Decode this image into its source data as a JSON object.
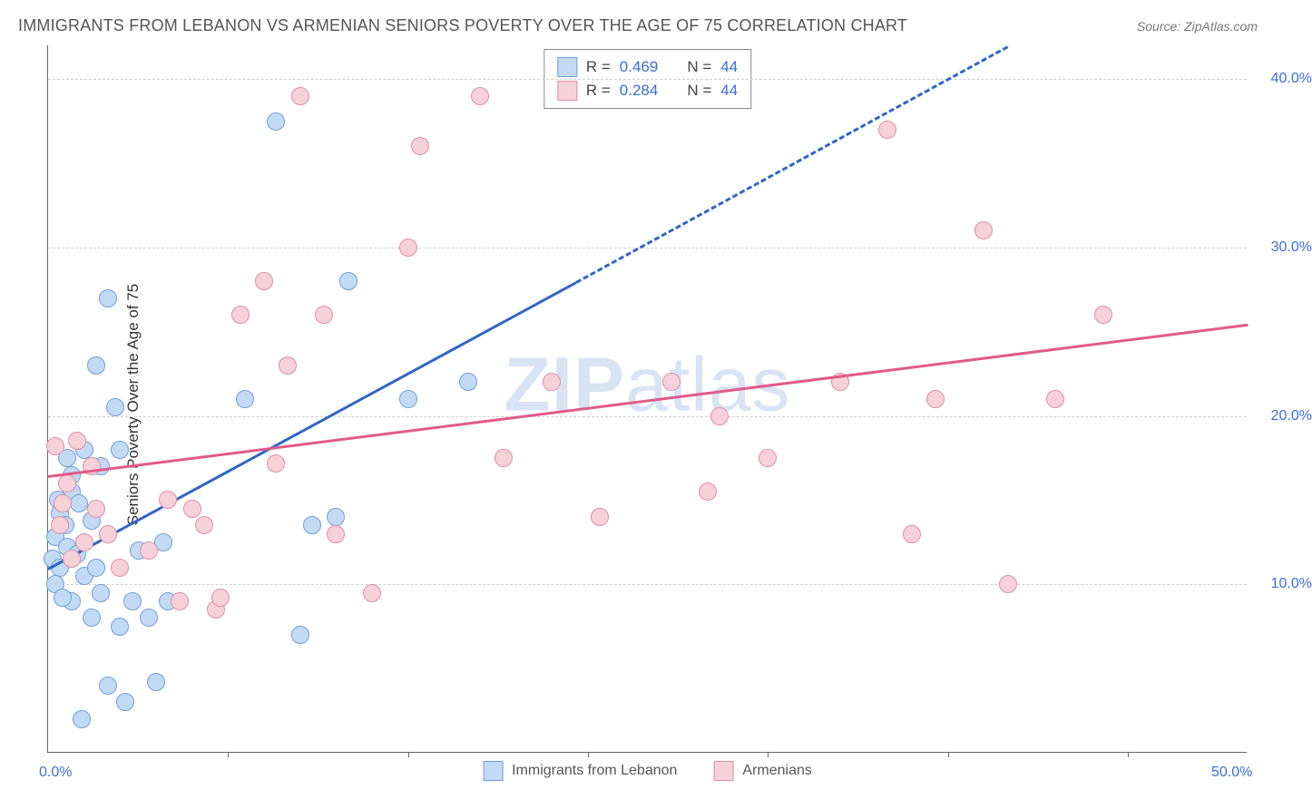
{
  "title": "IMMIGRANTS FROM LEBANON VS ARMENIAN SENIORS POVERTY OVER THE AGE OF 75 CORRELATION CHART",
  "source_label": "Source: ",
  "source_value": "ZipAtlas.com",
  "ylabel": "Seniors Poverty Over the Age of 75",
  "watermark_light": "ZIP",
  "watermark_bold": "atlas",
  "chart": {
    "type": "scatter",
    "xlim": [
      0,
      50
    ],
    "ylim": [
      0,
      42
    ],
    "x_ticks": [
      0,
      50
    ],
    "x_tick_labels": [
      "0.0%",
      "50.0%"
    ],
    "x_minor_ticks": [
      7.5,
      15,
      22.5,
      30,
      37.5,
      45
    ],
    "y_grid": [
      10,
      20,
      30,
      40
    ],
    "y_tick_labels": [
      "10.0%",
      "20.0%",
      "30.0%",
      "40.0%"
    ],
    "background_color": "#ffffff",
    "grid_color": "#d0d0d0",
    "axis_color": "#666666",
    "tick_label_color": "#3b6fd6",
    "point_radius": 10,
    "series": [
      {
        "name": "Immigrants from Lebanon",
        "fill": "#c3daf5",
        "stroke": "#6f9fd8",
        "trend": {
          "x1": 0,
          "y1": 11,
          "x2": 22,
          "y2": 28,
          "color": "#2f66c7",
          "dash": "solid"
        },
        "trend_ext": {
          "x1": 22,
          "y1": 28,
          "x2": 40,
          "y2": 42,
          "color": "#2f66c7",
          "dash": "dashed"
        },
        "R_label": "R = ",
        "R": "0.469",
        "N_label": "N = ",
        "N": "44",
        "points": [
          [
            0.2,
            11.5
          ],
          [
            0.3,
            12.8
          ],
          [
            0.5,
            14.2
          ],
          [
            0.5,
            11.0
          ],
          [
            0.7,
            13.5
          ],
          [
            0.8,
            12.2
          ],
          [
            1.0,
            15.5
          ],
          [
            1.0,
            9.0
          ],
          [
            1.2,
            11.8
          ],
          [
            1.3,
            14.8
          ],
          [
            1.5,
            10.5
          ],
          [
            1.8,
            8.0
          ],
          [
            2.0,
            23.0
          ],
          [
            2.2,
            9.5
          ],
          [
            2.5,
            27.0
          ],
          [
            2.5,
            4.0
          ],
          [
            2.8,
            20.5
          ],
          [
            3.0,
            7.5
          ],
          [
            3.2,
            3.0
          ],
          [
            3.5,
            9.0
          ],
          [
            3.8,
            12.0
          ],
          [
            4.2,
            8.0
          ],
          [
            4.5,
            4.2
          ],
          [
            4.8,
            12.5
          ],
          [
            5.0,
            9.0
          ],
          [
            8.2,
            21.0
          ],
          [
            9.5,
            37.5
          ],
          [
            10.5,
            7.0
          ],
          [
            11.0,
            13.5
          ],
          [
            12.0,
            14.0
          ],
          [
            12.5,
            28.0
          ],
          [
            15.0,
            21.0
          ],
          [
            17.5,
            22.0
          ],
          [
            0.8,
            17.5
          ],
          [
            1.5,
            18.0
          ],
          [
            0.3,
            10.0
          ],
          [
            1.0,
            16.5
          ],
          [
            2.0,
            11.0
          ],
          [
            3.0,
            18.0
          ],
          [
            0.6,
            9.2
          ],
          [
            1.8,
            13.8
          ],
          [
            0.4,
            15.0
          ],
          [
            2.2,
            17.0
          ],
          [
            1.4,
            2.0
          ]
        ]
      },
      {
        "name": "Armenians",
        "fill": "#f7d1da",
        "stroke": "#df8fa4",
        "trend": {
          "x1": 0,
          "y1": 16.5,
          "x2": 50,
          "y2": 25.5,
          "color": "#e15a87",
          "dash": "solid"
        },
        "trend_ext": null,
        "R_label": "R = ",
        "R": "0.284",
        "N_label": "N = ",
        "N": "44",
        "points": [
          [
            0.3,
            18.2
          ],
          [
            0.5,
            13.5
          ],
          [
            0.8,
            16.0
          ],
          [
            1.0,
            11.5
          ],
          [
            1.2,
            18.5
          ],
          [
            1.5,
            12.5
          ],
          [
            1.8,
            17.0
          ],
          [
            2.0,
            14.5
          ],
          [
            2.5,
            13.0
          ],
          [
            3.0,
            11.0
          ],
          [
            4.2,
            12.0
          ],
          [
            5.0,
            15.0
          ],
          [
            5.5,
            9.0
          ],
          [
            6.0,
            14.5
          ],
          [
            6.5,
            13.5
          ],
          [
            7.0,
            8.5
          ],
          [
            7.2,
            9.2
          ],
          [
            8.0,
            26.0
          ],
          [
            9.0,
            28.0
          ],
          [
            9.5,
            17.2
          ],
          [
            10.0,
            23.0
          ],
          [
            10.5,
            39.0
          ],
          [
            11.5,
            26.0
          ],
          [
            12.0,
            13.0
          ],
          [
            13.5,
            9.5
          ],
          [
            15.0,
            30.0
          ],
          [
            15.5,
            36.0
          ],
          [
            18.0,
            39.0
          ],
          [
            19.0,
            17.5
          ],
          [
            21.0,
            22.0
          ],
          [
            23.0,
            14.0
          ],
          [
            26.0,
            22.0
          ],
          [
            27.5,
            15.5
          ],
          [
            28.0,
            20.0
          ],
          [
            30.0,
            17.5
          ],
          [
            33.0,
            22.0
          ],
          [
            35.0,
            37.0
          ],
          [
            36.0,
            13.0
          ],
          [
            37.0,
            21.0
          ],
          [
            39.0,
            31.0
          ],
          [
            40.0,
            10.0
          ],
          [
            42.0,
            21.0
          ],
          [
            44.0,
            26.0
          ],
          [
            0.6,
            14.8
          ]
        ]
      }
    ]
  }
}
